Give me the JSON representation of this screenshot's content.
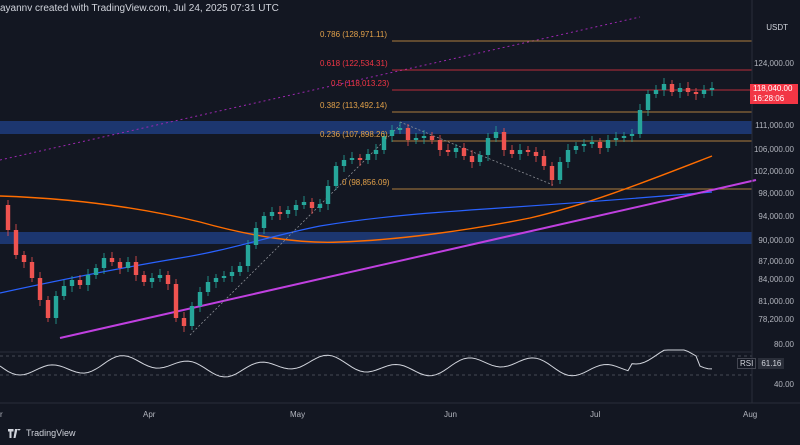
{
  "header": {
    "caption": "ayannv created with TradingView.com, Jul 24, 2025 07:31 UTC"
  },
  "price_axis": {
    "unit": "USDT",
    "labels": [
      "124,000.00",
      "111,000.00",
      "106,000.00",
      "102,000.00",
      "98,000.00",
      "94,000.00",
      "90,000.00",
      "87,000.00",
      "84,000.00",
      "81,000.00",
      "78,200.00"
    ]
  },
  "price_badge": {
    "price": "118,040.00",
    "countdown": "16:28:06"
  },
  "fib_levels": [
    {
      "ratio": "0.786 (128,971.11)",
      "style": "org"
    },
    {
      "ratio": "0.618 (122,534.31)",
      "style": "red"
    },
    {
      "ratio": "0.5 (118,013.23)",
      "style": "red"
    },
    {
      "ratio": "0.382 (113,492.14)",
      "style": "org"
    },
    {
      "ratio": "0.236 (107,898.26)",
      "style": "org"
    },
    {
      "ratio": "0 (98,856.09)",
      "style": "org"
    }
  ],
  "rsi": {
    "title": "RSI",
    "value": "61.16",
    "axis": [
      "80.00",
      "40.00"
    ]
  },
  "time_axis": {
    "months": [
      "Apr",
      "May",
      "Jun",
      "Jul",
      "Aug"
    ],
    "partial_left": "r"
  },
  "branding": {
    "logo_text": "TradingView"
  },
  "colors": {
    "background": "#131722",
    "candle_up": "#26a69a",
    "candle_down": "#ef5350",
    "ma_fast": "#ff6d00",
    "ma_slow": "#2962ff",
    "trendline": "#c040e0",
    "zone": "#1e3a78",
    "fib_red": "#f23645",
    "fib_orange": "#e2a14a"
  }
}
